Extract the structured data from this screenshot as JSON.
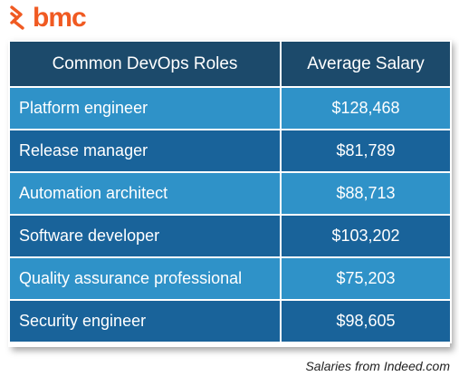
{
  "brand": {
    "logo_text": "bmc",
    "logo_color": "#f05a22"
  },
  "table": {
    "headers": {
      "role": "Common DevOps Roles",
      "salary": "Average Salary"
    },
    "rows": [
      {
        "role": "Platform engineer",
        "salary": "$128,468"
      },
      {
        "role": "Release manager",
        "salary": "$81,789"
      },
      {
        "role": "Automation architect",
        "salary": "$88,713"
      },
      {
        "role": "Software developer",
        "salary": "$103,202"
      },
      {
        "role": "Quality assurance professional",
        "salary": "$75,203"
      },
      {
        "role": "Security engineer",
        "salary": "$98,605"
      }
    ],
    "colors": {
      "header": "#1c4a6b",
      "row_light": "#2f92c8",
      "row_dark": "#19639a"
    }
  },
  "source_note": "Salaries from Indeed.com"
}
